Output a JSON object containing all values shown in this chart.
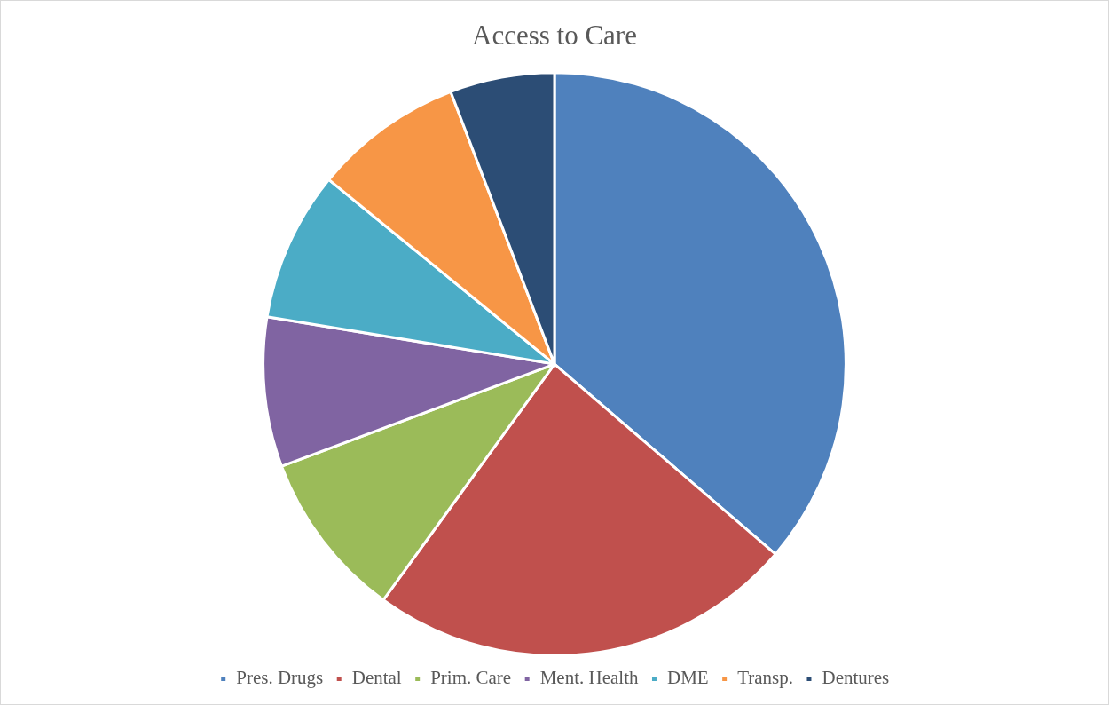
{
  "chart_data": {
    "type": "pie",
    "title": "Access to Care",
    "categories": [
      "Pres. Drugs",
      "Dental",
      "Prim. Care",
      "Ment. Health",
      "DME",
      "Transp.",
      "Dentures"
    ],
    "values": [
      36.3,
      23.7,
      9.3,
      8.3,
      8.3,
      8.3,
      5.8
    ],
    "colors": [
      "#4f81bd",
      "#c0504d",
      "#9bbb59",
      "#8064a2",
      "#4bacc6",
      "#f79646",
      "#2c4d75"
    ],
    "legend": "bottom"
  }
}
